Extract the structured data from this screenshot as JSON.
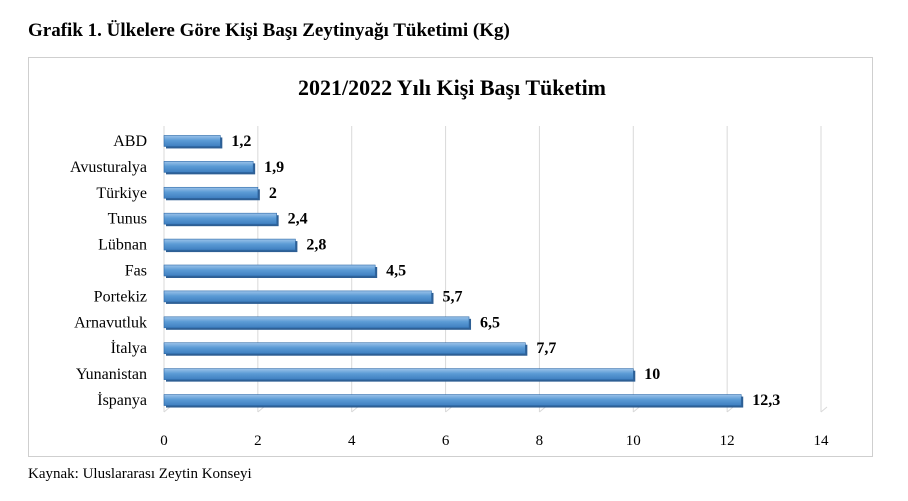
{
  "heading": "Grafik 1.  Ülkelere Göre Kişi Başı Zeytinyağı Tüketimi (Kg)",
  "source": "Kaynak: Uluslararası Zeytin Konseyi",
  "chart_data": {
    "type": "bar",
    "orientation": "horizontal",
    "title": "2021/2022 Yılı Kişi Başı Tüketim",
    "categories": [
      "ABD",
      "Avusturalya",
      "Türkiye",
      "Tunus",
      "Lübnan",
      "Fas",
      "Portekiz",
      "Arnavutluk",
      "İtalya",
      "Yunanistan",
      "İspanya"
    ],
    "values": [
      1.2,
      1.9,
      2,
      2.4,
      2.8,
      4.5,
      5.7,
      6.5,
      7.7,
      10,
      12.3
    ],
    "value_labels": [
      "1,2",
      "1,9",
      "2",
      "2,4",
      "2,8",
      "4,5",
      "5,7",
      "6,5",
      "7,7",
      "10",
      "12,3"
    ],
    "xlim": [
      0,
      14
    ],
    "xticks": [
      0,
      2,
      4,
      6,
      8,
      10,
      12,
      14
    ],
    "grid": true,
    "bar_color": "#5b9bd5",
    "bar_edge_color": "#2e6aa8"
  }
}
